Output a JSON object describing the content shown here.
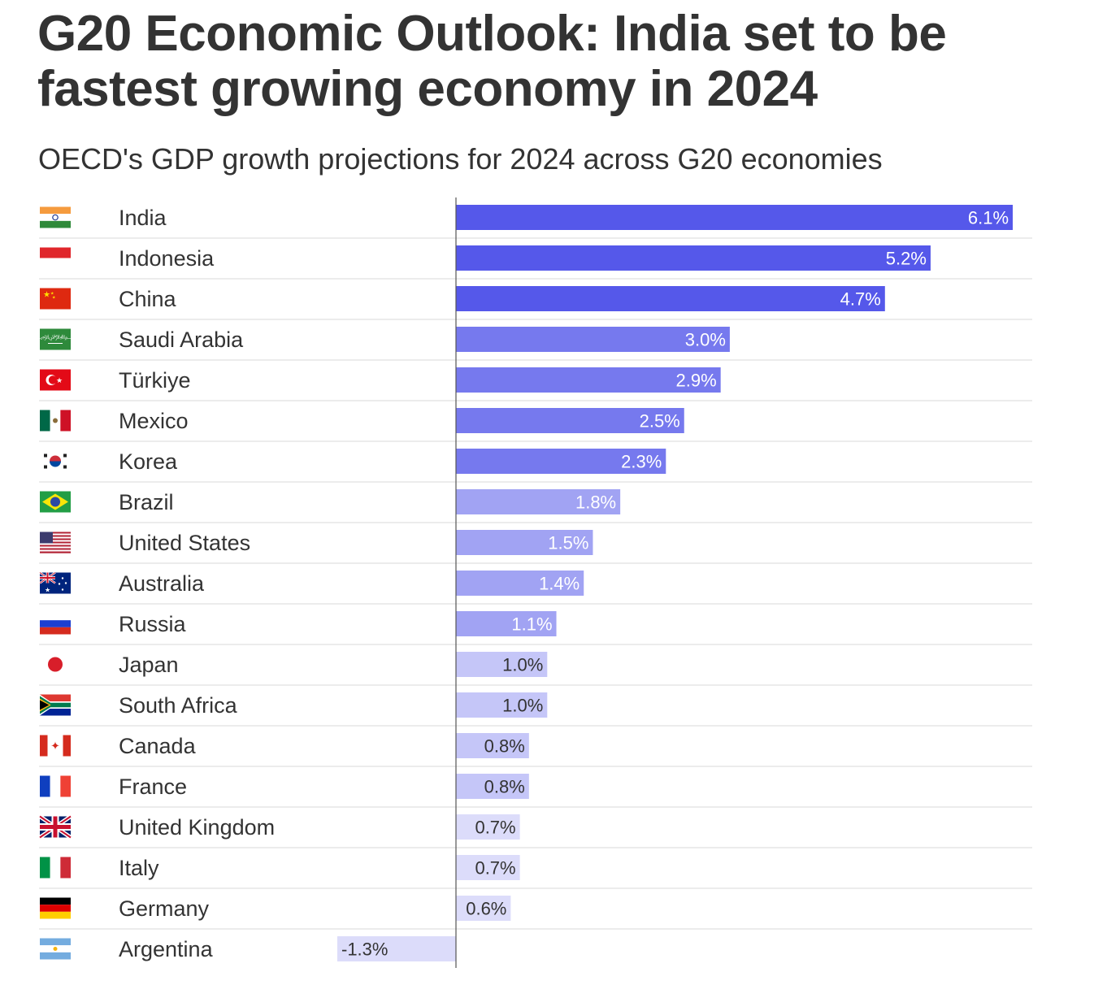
{
  "header": {
    "title": "G20 Economic Outlook: India set to be fastest growing economy in 2024",
    "subtitle": "OECD's GDP growth projections for 2024 across G20 economies"
  },
  "chart_data": {
    "type": "bar",
    "orientation": "horizontal",
    "title": "G20 Economic Outlook: India set to be fastest growing economy in 2024",
    "subtitle": "OECD's GDP growth projections for 2024 across G20 economies",
    "xlabel": "",
    "ylabel": "",
    "unit": "%",
    "xlim": [
      -1.3,
      6.1
    ],
    "grid": false,
    "legend": "none",
    "categories": [
      "India",
      "Indonesia",
      "China",
      "Saudi Arabia",
      "Türkiye",
      "Mexico",
      "Korea",
      "Brazil",
      "United States",
      "Australia",
      "Russia",
      "Japan",
      "South Africa",
      "Canada",
      "France",
      "United Kingdom",
      "Italy",
      "Germany",
      "Argentina"
    ],
    "values": [
      6.1,
      5.2,
      4.7,
      3.0,
      2.9,
      2.5,
      2.3,
      1.8,
      1.5,
      1.4,
      1.1,
      1.0,
      1.0,
      0.8,
      0.8,
      0.7,
      0.7,
      0.6,
      -1.3
    ],
    "value_labels": [
      "6.1%",
      "5.2%",
      "4.7%",
      "3.0%",
      "2.9%",
      "2.5%",
      "2.3%",
      "1.8%",
      "1.5%",
      "1.4%",
      "1.1%",
      "1.0%",
      "1.0%",
      "0.8%",
      "0.8%",
      "0.7%",
      "0.7%",
      "0.6%",
      "-1.3%"
    ],
    "flags": [
      "india-flag-icon",
      "indonesia-flag-icon",
      "china-flag-icon",
      "saudi-arabia-flag-icon",
      "turkiye-flag-icon",
      "mexico-flag-icon",
      "korea-flag-icon",
      "brazil-flag-icon",
      "united-states-flag-icon",
      "australia-flag-icon",
      "russia-flag-icon",
      "japan-flag-icon",
      "south-africa-flag-icon",
      "canada-flag-icon",
      "france-flag-icon",
      "united-kingdom-flag-icon",
      "italy-flag-icon",
      "germany-flag-icon",
      "argentina-flag-icon"
    ],
    "color_scale": [
      {
        "min": 4.0,
        "color": "#5558ea",
        "label_color": "#ffffff"
      },
      {
        "min": 2.0,
        "color": "#7679ee",
        "label_color": "#ffffff"
      },
      {
        "min": 1.1,
        "color": "#a1a3f3",
        "label_color": "#ffffff"
      },
      {
        "min": 0.8,
        "color": "#c5c6f8",
        "label_color": "#333333"
      },
      {
        "min": -99,
        "color": "#dcdcfa",
        "label_color": "#333333"
      }
    ]
  }
}
